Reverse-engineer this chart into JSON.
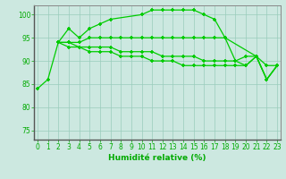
{
  "series": [
    {
      "x": [
        0,
        1,
        2,
        3,
        4,
        5,
        6,
        7,
        10,
        11,
        12,
        13,
        14,
        15,
        16,
        17,
        18,
        21,
        22,
        23
      ],
      "y": [
        84,
        86,
        94,
        97,
        95,
        97,
        98,
        99,
        100,
        101,
        101,
        101,
        101,
        101,
        100,
        99,
        95,
        91,
        86,
        89
      ]
    },
    {
      "x": [
        2,
        3,
        4,
        5,
        6,
        7,
        8,
        9,
        10,
        11,
        12,
        13,
        14,
        15,
        16,
        17,
        18,
        19,
        20,
        21,
        22,
        23
      ],
      "y": [
        94,
        94,
        94,
        95,
        95,
        95,
        95,
        95,
        95,
        95,
        95,
        95,
        95,
        95,
        95,
        95,
        95,
        90,
        91,
        91,
        89,
        89
      ]
    },
    {
      "x": [
        2,
        3,
        4,
        5,
        6,
        7,
        8,
        9,
        10,
        11,
        12,
        13,
        14,
        15,
        16,
        17,
        18,
        19,
        20,
        21,
        22,
        23
      ],
      "y": [
        94,
        94,
        93,
        93,
        93,
        93,
        92,
        92,
        92,
        92,
        91,
        91,
        91,
        91,
        90,
        90,
        90,
        90,
        89,
        91,
        86,
        89
      ]
    },
    {
      "x": [
        2,
        3,
        4,
        5,
        6,
        7,
        8,
        9,
        10,
        11,
        12,
        13,
        14,
        15,
        16,
        17,
        18,
        19,
        20,
        21,
        22,
        23
      ],
      "y": [
        94,
        93,
        93,
        92,
        92,
        92,
        91,
        91,
        91,
        90,
        90,
        90,
        89,
        89,
        89,
        89,
        89,
        89,
        89,
        91,
        86,
        89
      ]
    }
  ],
  "line_color": "#00cc00",
  "marker": "+",
  "markersize": 3.5,
  "markeredgewidth": 1.2,
  "linewidth": 0.9,
  "xlim": [
    -0.3,
    23.3
  ],
  "ylim": [
    73,
    102
  ],
  "yticks": [
    75,
    80,
    85,
    90,
    95,
    100
  ],
  "xticks": [
    0,
    1,
    2,
    3,
    4,
    5,
    6,
    7,
    8,
    9,
    10,
    11,
    12,
    13,
    14,
    15,
    16,
    17,
    18,
    19,
    20,
    21,
    22,
    23
  ],
  "xlabel": "Humidité relative (%)",
  "xlabel_color": "#00aa00",
  "xlabel_fontsize": 6.5,
  "tick_fontsize": 5.5,
  "tick_color": "#00aa00",
  "grid_color": "#99ccbb",
  "background_color": "#cce8e0",
  "spine_color": "#888888"
}
